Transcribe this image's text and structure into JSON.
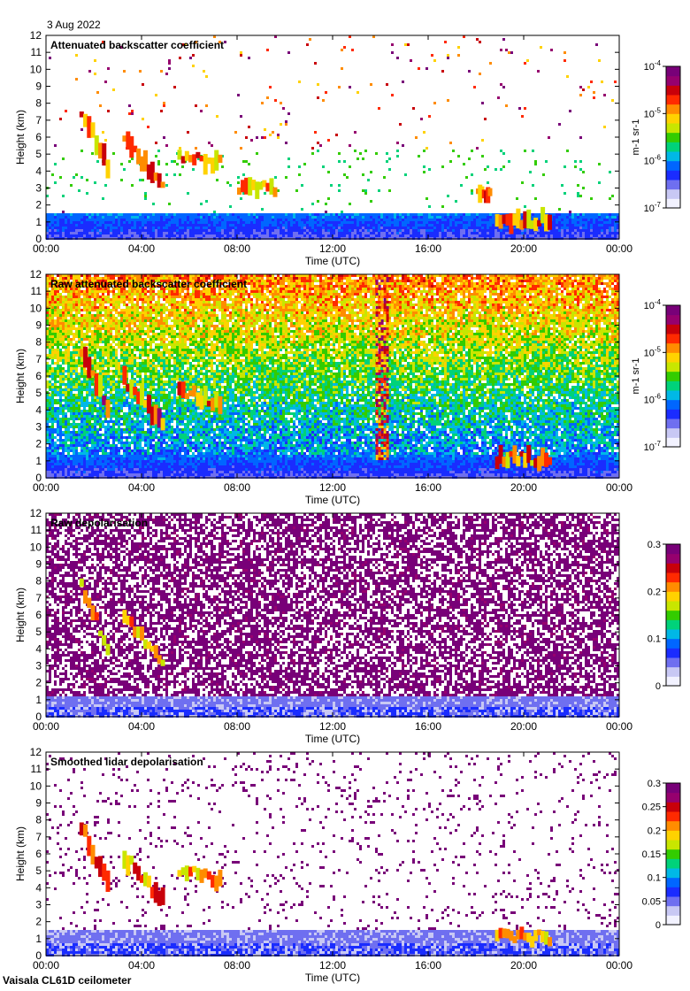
{
  "header": {
    "date": "3 Aug 2022"
  },
  "footer": {
    "instrument": "Vaisala CL61D ceilometer"
  },
  "palettes": {
    "rainbow": [
      "#f2f2ff",
      "#c8c8f4",
      "#6f6ff0",
      "#1a2cff",
      "#0066ff",
      "#00b8e6",
      "#00d27a",
      "#33cc00",
      "#c8e600",
      "#ffd200",
      "#ff8c00",
      "#ff2a00",
      "#c8000a",
      "#96006e",
      "#780078"
    ]
  },
  "chart_data": [
    {
      "type": "heatmap",
      "title": "Attenuated backscatter coefficient",
      "xlabel": "Time (UTC)",
      "ylabel": "Height (km)",
      "x_ticks": [
        "00:00",
        "04:00",
        "08:00",
        "12:00",
        "16:00",
        "20:00",
        "00:00"
      ],
      "y_ticks": [
        "0",
        "1",
        "2",
        "3",
        "4",
        "5",
        "6",
        "7",
        "8",
        "9",
        "10",
        "11",
        "12"
      ],
      "xlim_hours": [
        0,
        24
      ],
      "ylim_km": [
        0,
        12
      ],
      "colorbar": {
        "scale": "log",
        "range": [
          1e-07,
          0.0001
        ],
        "tick_labels": [
          "10-7",
          "10-6",
          "10-5",
          "10-4"
        ],
        "units": "m-1 sr-1"
      },
      "field": "backscatter",
      "noise": 0.35,
      "features": [
        {
          "kind": "boundary_layer",
          "top_km": 1.6
        },
        {
          "kind": "cloud_layer",
          "t": [
            1.4,
            2.5
          ],
          "z": [
            7.6,
            4.2
          ],
          "intensity": 0.9
        },
        {
          "kind": "cloud_layer",
          "t": [
            3.2,
            4.8
          ],
          "z": [
            5.8,
            3.2
          ],
          "intensity": 0.85
        },
        {
          "kind": "cloud_layer",
          "t": [
            5.5,
            7.2
          ],
          "z": [
            5.0,
            4.5
          ],
          "intensity": 0.8
        },
        {
          "kind": "cloud_layer",
          "t": [
            8.0,
            9.5
          ],
          "z": [
            3.0,
            3.0
          ],
          "intensity": 0.7
        },
        {
          "kind": "cloud_layer",
          "t": [
            18.0,
            18.5
          ],
          "z": [
            2.5,
            2.5
          ],
          "intensity": 0.7
        },
        {
          "kind": "cloud_layer",
          "t": [
            18.8,
            21.0
          ],
          "z": [
            1.1,
            1.1
          ],
          "intensity": 0.8
        }
      ]
    },
    {
      "type": "heatmap",
      "title": "Raw attenuated backscatter coefficient",
      "xlabel": "Time (UTC)",
      "ylabel": "Height (km)",
      "x_ticks": [
        "00:00",
        "04:00",
        "08:00",
        "12:00",
        "16:00",
        "20:00",
        "00:00"
      ],
      "y_ticks": [
        "0",
        "1",
        "2",
        "3",
        "4",
        "5",
        "6",
        "7",
        "8",
        "9",
        "10",
        "11",
        "12"
      ],
      "xlim_hours": [
        0,
        24
      ],
      "ylim_km": [
        0,
        12
      ],
      "colorbar": {
        "scale": "log",
        "range": [
          1e-07,
          0.0001
        ],
        "tick_labels": [
          "10-7",
          "10-6",
          "10-5",
          "10-4"
        ],
        "units": "m-1 sr-1"
      },
      "field": "raw_backscatter",
      "noise": 0.9,
      "features": [
        {
          "kind": "boundary_layer",
          "top_km": 1.5
        },
        {
          "kind": "cloud_layer",
          "t": [
            1.4,
            2.5
          ],
          "z": [
            7.6,
            4.2
          ],
          "intensity": 0.9
        },
        {
          "kind": "cloud_layer",
          "t": [
            3.2,
            4.8
          ],
          "z": [
            5.8,
            3.2
          ],
          "intensity": 0.85
        },
        {
          "kind": "cloud_layer",
          "t": [
            5.5,
            7.2
          ],
          "z": [
            5.0,
            4.5
          ],
          "intensity": 0.8
        },
        {
          "kind": "cloud_layer",
          "t": [
            18.8,
            21.0
          ],
          "z": [
            1.1,
            1.1
          ],
          "intensity": 0.8
        },
        {
          "kind": "noise_column",
          "t": [
            13.8,
            14.3
          ],
          "intensity": 0.9
        }
      ]
    },
    {
      "type": "heatmap",
      "title": "Raw depolarisation",
      "xlabel": "Time (UTC)",
      "ylabel": "Height (km)",
      "x_ticks": [
        "00:00",
        "04:00",
        "08:00",
        "12:00",
        "16:00",
        "20:00",
        "00:00"
      ],
      "y_ticks": [
        "0",
        "1",
        "2",
        "3",
        "4",
        "5",
        "6",
        "7",
        "8",
        "9",
        "10",
        "11",
        "12"
      ],
      "xlim_hours": [
        0,
        24
      ],
      "ylim_km": [
        0,
        12
      ],
      "colorbar": {
        "scale": "linear",
        "range": [
          0,
          0.3
        ],
        "tick_labels": [
          "0",
          "0.1",
          "0.2",
          "0.3"
        ],
        "units": ""
      },
      "field": "raw_depol",
      "noise": 1.0,
      "features": [
        {
          "kind": "boundary_layer",
          "top_km": 1.2
        },
        {
          "kind": "cloud_layer",
          "t": [
            1.4,
            2.5
          ],
          "z": [
            7.6,
            4.2
          ],
          "intensity": 0.5
        },
        {
          "kind": "cloud_layer",
          "t": [
            3.2,
            4.8
          ],
          "z": [
            5.8,
            3.2
          ],
          "intensity": 0.5
        }
      ]
    },
    {
      "type": "heatmap",
      "title": "Smoothed lidar depolarisation",
      "xlabel": "Time (UTC)",
      "ylabel": "Height (km)",
      "x_ticks": [
        "00:00",
        "04:00",
        "08:00",
        "12:00",
        "16:00",
        "20:00",
        "00:00"
      ],
      "y_ticks": [
        "0",
        "1",
        "2",
        "3",
        "4",
        "5",
        "6",
        "7",
        "8",
        "9",
        "10",
        "11",
        "12"
      ],
      "xlim_hours": [
        0,
        24
      ],
      "ylim_km": [
        0,
        12
      ],
      "colorbar": {
        "scale": "linear",
        "range": [
          0,
          0.3
        ],
        "tick_labels": [
          "0",
          "0.05",
          "0.1",
          "0.15",
          "0.2",
          "0.25",
          "0.3"
        ],
        "units": ""
      },
      "field": "smoothed_depol",
      "noise": 0.25,
      "features": [
        {
          "kind": "boundary_layer",
          "top_km": 1.6
        },
        {
          "kind": "cloud_layer",
          "t": [
            1.4,
            2.5
          ],
          "z": [
            7.6,
            4.2
          ],
          "intensity": 0.9
        },
        {
          "kind": "cloud_layer",
          "t": [
            3.2,
            4.8
          ],
          "z": [
            5.8,
            3.2
          ],
          "intensity": 0.85
        },
        {
          "kind": "cloud_layer",
          "t": [
            5.5,
            7.2
          ],
          "z": [
            5.0,
            4.5
          ],
          "intensity": 0.6
        },
        {
          "kind": "cloud_layer",
          "t": [
            18.8,
            21.0
          ],
          "z": [
            1.1,
            1.1
          ],
          "intensity": 0.5
        }
      ]
    }
  ]
}
